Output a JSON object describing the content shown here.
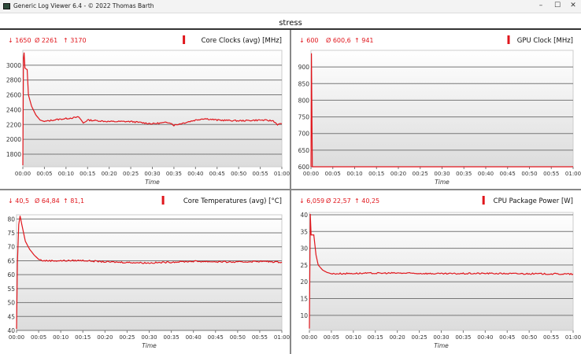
{
  "window": {
    "title": "Generic Log Viewer 6.4 - © 2022 Thomas Barth",
    "minimize": "–",
    "maximize": "☐",
    "close": "✕"
  },
  "page_title": "stress",
  "accent": "#e0161c",
  "chart_data": [
    {
      "type": "line",
      "title": "Core Clocks (avg) [MHz]",
      "stats": {
        "min": "↓ 1650",
        "avg": "Ø 2261",
        "max": "↑ 3170"
      },
      "xlabel": "Time",
      "xticks": [
        "00:00",
        "00:05",
        "00:10",
        "00:15",
        "00:20",
        "00:25",
        "00:30",
        "00:35",
        "00:40",
        "00:45",
        "00:50",
        "00:55",
        "01:00"
      ],
      "yticks": [
        1800,
        2000,
        2200,
        2400,
        2600,
        2800,
        3000
      ],
      "ylim": [
        1630,
        3200
      ],
      "xlim": [
        0,
        60
      ],
      "grid": true,
      "x": [
        0,
        0.15,
        0.3,
        0.5,
        1,
        1.3,
        2,
        3,
        4,
        5,
        7,
        10,
        13,
        14,
        15,
        20,
        25,
        30,
        34,
        35,
        40,
        42,
        45,
        50,
        55,
        58,
        59,
        60
      ],
      "y": [
        1650,
        3100,
        3170,
        2960,
        2940,
        2600,
        2450,
        2330,
        2260,
        2240,
        2260,
        2280,
        2300,
        2220,
        2260,
        2240,
        2240,
        2210,
        2230,
        2190,
        2260,
        2280,
        2260,
        2250,
        2260,
        2250,
        2200,
        2210
      ]
    },
    {
      "type": "line",
      "title": "GPU Clock [MHz]",
      "stats": {
        "min": "↓ 600",
        "avg": "Ø 600,6",
        "max": "↑ 941"
      },
      "xlabel": "Time",
      "xticks": [
        "00:00",
        "00:05",
        "00:10",
        "00:15",
        "00:20",
        "00:25",
        "00:30",
        "00:35",
        "00:40",
        "00:45",
        "00:50",
        "00:55",
        "01:00"
      ],
      "yticks": [
        600,
        650,
        700,
        750,
        800,
        850,
        900
      ],
      "ylim": [
        600,
        950
      ],
      "xlim": [
        0,
        60
      ],
      "grid": true,
      "x": [
        0,
        0.1,
        0.3,
        60
      ],
      "y": [
        600,
        941,
        600,
        600
      ]
    },
    {
      "type": "line",
      "title": "Core Temperatures (avg) [°C]",
      "stats": {
        "min": "↓ 40,5",
        "avg": "Ø 64,84",
        "max": "↑ 81,1"
      },
      "xlabel": "Time",
      "xticks": [
        "00:00",
        "00:05",
        "00:10",
        "00:15",
        "00:20",
        "00:25",
        "00:30",
        "00:35",
        "00:40",
        "00:45",
        "00:50",
        "00:55",
        "01:00"
      ],
      "yticks": [
        40,
        45,
        50,
        55,
        60,
        65,
        70,
        75,
        80
      ],
      "ylim": [
        40,
        81.5
      ],
      "xlim": [
        0,
        60
      ],
      "grid": true,
      "x": [
        0,
        0.2,
        0.5,
        0.8,
        1.2,
        2,
        3,
        4,
        5,
        6,
        10,
        15,
        20,
        30,
        40,
        50,
        55,
        60
      ],
      "y": [
        40.5,
        64,
        78,
        81.1,
        78,
        72,
        69,
        67,
        65.5,
        65,
        65,
        65.1,
        64.6,
        64.2,
        64.8,
        64.5,
        64.8,
        64.5
      ]
    },
    {
      "type": "line",
      "title": "CPU Package Power [W]",
      "stats": {
        "min": "↓ 6,059",
        "avg": "Ø 22,57",
        "max": "↑ 40,25"
      },
      "xlabel": "Time",
      "xticks": [
        "00:00",
        "00:05",
        "00:10",
        "00:15",
        "00:20",
        "00:25",
        "00:30",
        "00:35",
        "00:40",
        "00:45",
        "00:50",
        "00:55",
        "01:00"
      ],
      "yticks": [
        10,
        15,
        20,
        25,
        30,
        35,
        40
      ],
      "ylim": [
        5.5,
        40.7
      ],
      "xlim": [
        0,
        60
      ],
      "grid": true,
      "x": [
        0,
        0.2,
        0.4,
        1,
        1.5,
        2,
        3,
        4,
        5,
        10,
        20,
        30,
        40,
        50,
        60
      ],
      "y": [
        6.06,
        40.25,
        34,
        34,
        28,
        25,
        23.5,
        22.8,
        22.4,
        22.5,
        22.6,
        22.4,
        22.5,
        22.4,
        22.3
      ]
    }
  ]
}
